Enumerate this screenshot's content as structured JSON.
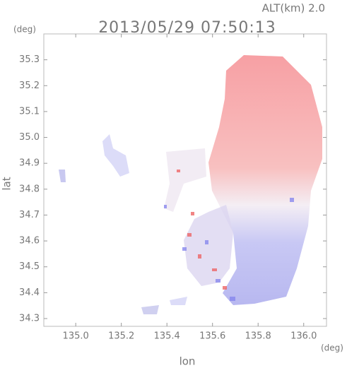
{
  "chart_data": {
    "type": "map",
    "title": "2013/05/29 07:50:13",
    "subtitle": "ALT(km) 2.0",
    "x_label": "lon",
    "y_label": "lat",
    "x_unit": "(deg)",
    "y_unit": "(deg)",
    "xlim": [
      134.86,
      136.1
    ],
    "ylim": [
      34.27,
      35.4
    ],
    "xticks": [
      {
        "value": 135.0,
        "label": "135.0"
      },
      135.2,
      135.4,
      135.6,
      135.8,
      {
        "value": 136.0,
        "label": "136.0"
      }
    ],
    "yticks": [
      34.3,
      34.4,
      34.5,
      34.6,
      34.7,
      34.8,
      34.9,
      {
        "value": 35.0,
        "label": "35.0"
      },
      35.1,
      35.2,
      35.3
    ]
  }
}
